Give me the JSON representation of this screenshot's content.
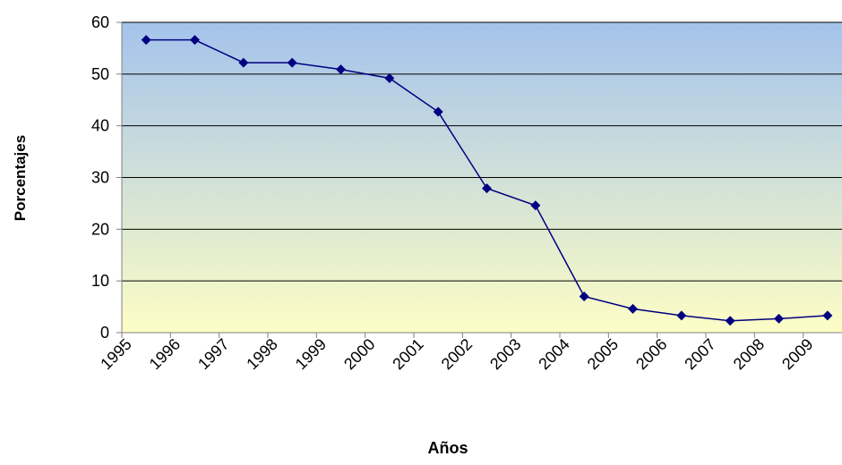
{
  "chart_data": {
    "type": "line",
    "title": "",
    "xlabel": "Años",
    "ylabel": "Porcentajes",
    "ylim": [
      0,
      60
    ],
    "yticks": [
      0,
      10,
      20,
      30,
      40,
      50,
      60
    ],
    "grid": true,
    "legend": "none",
    "categories": [
      "1995",
      "1996",
      "1997",
      "1998",
      "1999",
      "2000",
      "2001",
      "2002",
      "2003",
      "2004",
      "2005",
      "2006",
      "2007",
      "2008",
      "2009"
    ],
    "series": [
      {
        "values": [
          56.6,
          56.6,
          52.2,
          52.2,
          50.9,
          49.2,
          42.7,
          27.9,
          24.6,
          7.0,
          4.6,
          3.3,
          2.3,
          2.7,
          3.3
        ],
        "color": "#000080"
      }
    ],
    "colors": {
      "plot_gradient_top": "#a4c3ec",
      "plot_gradient_bottom": "#fdfdc5",
      "gridline": "#000000",
      "line": "#000080"
    }
  }
}
